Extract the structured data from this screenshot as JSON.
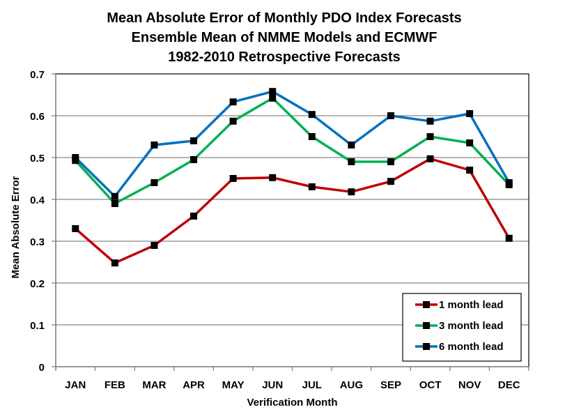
{
  "chart_data": {
    "type": "line",
    "title": [
      "Mean Absolute Error of Monthly PDO Index Forecasts",
      "Ensemble Mean of NMME Models and ECMWF",
      "1982-2010  Retrospective Forecasts"
    ],
    "xlabel": "Verification Month",
    "ylabel": "Mean Absolute Error",
    "categories": [
      "JAN",
      "FEB",
      "MAR",
      "APR",
      "MAY",
      "JUN",
      "JUL",
      "AUG",
      "SEP",
      "OCT",
      "NOV",
      "DEC"
    ],
    "ylim": [
      0,
      0.7
    ],
    "yticks": [
      0,
      0.1,
      0.2,
      0.3,
      0.4,
      0.5,
      0.6,
      0.7
    ],
    "ytick_labels": [
      "0",
      "0.1",
      "0.2",
      "0.3",
      "0.4",
      "0.5",
      "0.6",
      "0.7"
    ],
    "grid": "horizontal",
    "legend_position": "bottom-right",
    "marker": "square",
    "marker_color": "#000000",
    "series": [
      {
        "name": "1 month lead",
        "color": "#C00000",
        "values": [
          0.33,
          0.248,
          0.29,
          0.36,
          0.45,
          0.452,
          0.43,
          0.418,
          0.443,
          0.497,
          0.47,
          0.307
        ]
      },
      {
        "name": "3 month lead",
        "color": "#00B050",
        "values": [
          0.493,
          0.39,
          0.44,
          0.495,
          0.587,
          0.642,
          0.55,
          0.49,
          0.49,
          0.55,
          0.535,
          0.435
        ]
      },
      {
        "name": "6 month lead",
        "color": "#0070C0",
        "values": [
          0.5,
          0.407,
          0.53,
          0.54,
          0.633,
          0.658,
          0.603,
          0.53,
          0.6,
          0.587,
          0.605,
          0.44
        ]
      }
    ]
  }
}
